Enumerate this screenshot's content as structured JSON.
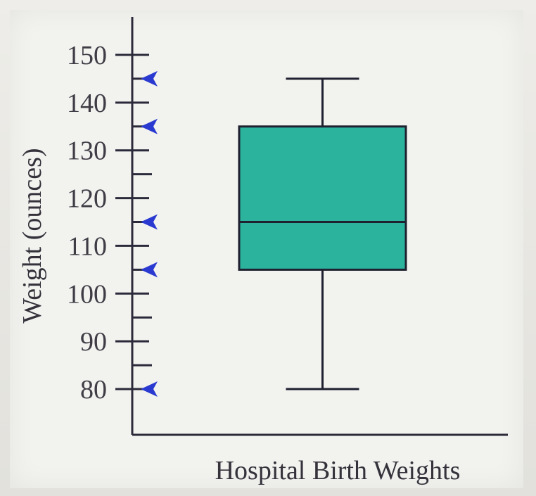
{
  "chart_data": {
    "type": "boxplot",
    "title": "",
    "xlabel": "Hospital Birth Weights",
    "ylabel": "Weight (ounces)",
    "ylim": [
      70,
      160
    ],
    "yticks": [
      80,
      90,
      100,
      110,
      120,
      130,
      140,
      150
    ],
    "minor_ticks": [
      85,
      95,
      105,
      115,
      125,
      135,
      145
    ],
    "grid": false,
    "box": {
      "min": 80,
      "q1": 105,
      "median": 115,
      "q3": 135,
      "max": 145,
      "color": "#2bb39d"
    },
    "markers": {
      "shape": "arrowhead",
      "color": "#2a3ad0",
      "values": [
        80,
        105,
        115,
        135,
        145
      ]
    },
    "colors": {
      "axis": "#2b2a3a",
      "outline": "#1f2030"
    }
  }
}
